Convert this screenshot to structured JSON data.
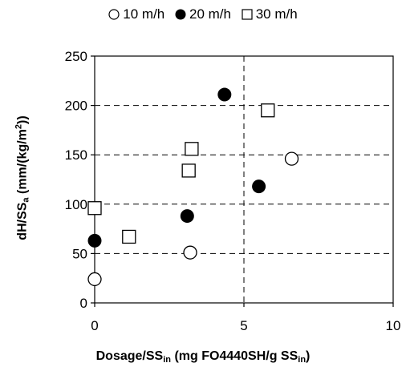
{
  "chart_data": {
    "type": "scatter",
    "title": "",
    "xlabel": {
      "main": "Dosage/SS",
      "sub": "in",
      "rest": " (mg FO4440SH/g SS",
      "sub2": "in",
      "end": ")"
    },
    "ylabel": {
      "main": "dH/SS",
      "sub": "a",
      "rest": " (mm/(kg/m",
      "sup": "2",
      "end": "))"
    },
    "xlim": [
      0,
      10
    ],
    "ylim": [
      0,
      250
    ],
    "xticks": [
      "0",
      "5",
      "10"
    ],
    "yticks": [
      "0",
      "50",
      "100",
      "150",
      "200",
      "250"
    ],
    "grid": {
      "horizontal": "dashed",
      "vertical_at_x": 5
    },
    "legend_position": "top",
    "series": [
      {
        "name": "10 m/h",
        "marker": "circle-open",
        "points": [
          [
            0,
            24
          ],
          [
            3.2,
            51
          ],
          [
            6.6,
            146
          ]
        ]
      },
      {
        "name": "20 m/h",
        "marker": "circle-filled",
        "points": [
          [
            0,
            63
          ],
          [
            3.1,
            88
          ],
          [
            4.35,
            211
          ],
          [
            5.5,
            118
          ]
        ]
      },
      {
        "name": "30 m/h",
        "marker": "square-open",
        "points": [
          [
            0,
            96
          ],
          [
            1.15,
            67
          ],
          [
            3.15,
            134
          ],
          [
            3.25,
            156
          ],
          [
            5.8,
            195
          ]
        ]
      }
    ]
  }
}
